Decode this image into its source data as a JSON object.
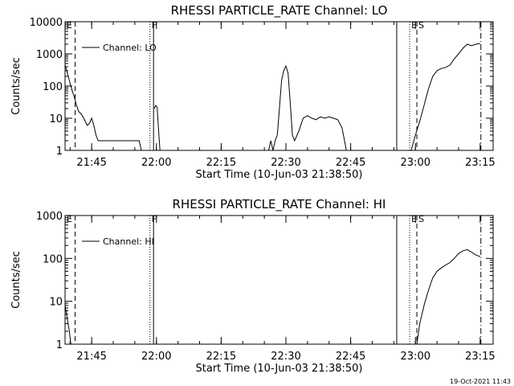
{
  "footer": {
    "timestamp": "19-Oct-2021 11:43"
  },
  "chart_data": [
    {
      "type": "line",
      "title": "RHESSI PARTICLE_RATE Channel: LO",
      "xlabel": "Start Time (10-Jun-03 21:38:50)",
      "ylabel": "Counts/sec",
      "yscale": "log",
      "xlim": [
        "21:38:50",
        "23:18:00"
      ],
      "ylim": [
        1,
        10000
      ],
      "x_ticks": [
        "21:45",
        "22:00",
        "22:15",
        "22:30",
        "22:45",
        "23:00",
        "23:15"
      ],
      "y_ticks": [
        "1",
        "10",
        "100",
        "1000",
        "10000"
      ],
      "legend": {
        "position": "top-left",
        "label": "Channel: LO"
      },
      "markers": [
        {
          "time": "21:38:50",
          "style": "dotted",
          "label": "E"
        },
        {
          "time": "21:41:10",
          "style": "dashed",
          "label": ""
        },
        {
          "time": "21:58:30",
          "style": "dotted",
          "label": "F"
        },
        {
          "time": "21:59:20",
          "style": "solid",
          "label": ""
        },
        {
          "time": "22:55:40",
          "style": "solid",
          "label": ""
        },
        {
          "time": "22:58:40",
          "style": "dotted",
          "label": "E"
        },
        {
          "time": "23:00:20",
          "style": "dashed",
          "label": "S"
        },
        {
          "time": "23:15:10",
          "style": "dashdot",
          "label": ""
        }
      ],
      "series": [
        {
          "segments": [
            [
              [
                "21:38:50",
                450
              ],
              [
                "21:39:30",
                220
              ],
              [
                "21:40:00",
                120
              ],
              [
                "21:40:30",
                70
              ],
              [
                "21:41:00",
                45
              ],
              [
                "21:41:30",
                25
              ],
              [
                "21:42:00",
                16
              ],
              [
                "21:42:30",
                14
              ],
              [
                "21:43:00",
                11
              ],
              [
                "21:43:30",
                8
              ],
              [
                "21:44:00",
                6
              ],
              [
                "21:44:30",
                7
              ],
              [
                "21:45:00",
                10
              ],
              [
                "21:45:30",
                6
              ],
              [
                "21:46:00",
                3
              ],
              [
                "21:46:30",
                2
              ],
              [
                "21:47:00",
                2
              ],
              [
                "21:48:00",
                2
              ],
              [
                "21:49:00",
                2
              ],
              [
                "21:50:00",
                2
              ],
              [
                "21:51:00",
                2
              ],
              [
                "21:52:00",
                2
              ],
              [
                "21:53:00",
                2
              ],
              [
                "21:54:00",
                2
              ],
              [
                "21:55:00",
                2
              ],
              [
                "21:56:00",
                2
              ],
              [
                "21:56:30",
                1
              ]
            ],
            [
              [
                "21:59:30",
                20
              ],
              [
                "21:59:50",
                25
              ],
              [
                "22:00:10",
                22
              ],
              [
                "22:00:30",
                4
              ],
              [
                "22:00:50",
                1
              ]
            ],
            [
              [
                "22:26:00",
                1
              ],
              [
                "22:26:30",
                2
              ],
              [
                "22:27:00",
                1
              ],
              [
                "22:27:30",
                2
              ],
              [
                "22:28:00",
                3
              ],
              [
                "22:28:30",
                20
              ],
              [
                "22:29:00",
                150
              ],
              [
                "22:29:30",
                300
              ],
              [
                "22:30:00",
                420
              ],
              [
                "22:30:30",
                250
              ],
              [
                "22:31:00",
                30
              ],
              [
                "22:31:30",
                3
              ],
              [
                "22:32:00",
                2
              ],
              [
                "22:33:00",
                4
              ],
              [
                "22:34:00",
                10
              ],
              [
                "22:35:00",
                12
              ],
              [
                "22:36:00",
                10
              ],
              [
                "22:37:00",
                9
              ],
              [
                "22:38:00",
                11
              ],
              [
                "22:39:00",
                10
              ],
              [
                "22:40:00",
                11
              ],
              [
                "22:41:00",
                10
              ],
              [
                "22:42:00",
                9
              ],
              [
                "22:43:00",
                5
              ],
              [
                "22:44:00",
                1
              ]
            ],
            [
              [
                "22:59:00",
                1
              ],
              [
                "23:00:00",
                3
              ],
              [
                "23:01:00",
                8
              ],
              [
                "23:02:00",
                25
              ],
              [
                "23:03:00",
                80
              ],
              [
                "23:04:00",
                200
              ],
              [
                "23:05:00",
                300
              ],
              [
                "23:06:00",
                350
              ],
              [
                "23:07:00",
                380
              ],
              [
                "23:08:00",
                450
              ],
              [
                "23:09:00",
                700
              ],
              [
                "23:10:00",
                1000
              ],
              [
                "23:11:00",
                1500
              ],
              [
                "23:12:00",
                2000
              ],
              [
                "23:13:00",
                1800
              ],
              [
                "23:14:00",
                2000
              ],
              [
                "23:15:00",
                2100
              ]
            ]
          ]
        }
      ]
    },
    {
      "type": "line",
      "title": "RHESSI PARTICLE_RATE Channel: HI",
      "xlabel": "Start Time (10-Jun-03 21:38:50)",
      "ylabel": "Counts/sec",
      "yscale": "log",
      "xlim": [
        "21:38:50",
        "23:18:00"
      ],
      "ylim": [
        1,
        1000
      ],
      "x_ticks": [
        "21:45",
        "22:00",
        "22:15",
        "22:30",
        "22:45",
        "23:00",
        "23:15"
      ],
      "y_ticks": [
        "1",
        "10",
        "100",
        "1000"
      ],
      "legend": {
        "position": "top-left",
        "label": "Channel: HI"
      },
      "markers": [
        {
          "time": "21:38:50",
          "style": "dotted",
          "label": "E"
        },
        {
          "time": "21:41:10",
          "style": "dashed",
          "label": ""
        },
        {
          "time": "21:58:30",
          "style": "dotted",
          "label": "F"
        },
        {
          "time": "21:59:20",
          "style": "solid",
          "label": ""
        },
        {
          "time": "22:55:40",
          "style": "solid",
          "label": ""
        },
        {
          "time": "22:58:40",
          "style": "dotted",
          "label": "E"
        },
        {
          "time": "23:00:20",
          "style": "dashed",
          "label": "S"
        },
        {
          "time": "23:15:10",
          "style": "dashdot",
          "label": ""
        }
      ],
      "series": [
        {
          "segments": [
            [
              [
                "21:38:50",
                8
              ],
              [
                "21:39:20",
                4
              ],
              [
                "21:39:50",
                2
              ],
              [
                "21:40:10",
                1
              ]
            ],
            [
              [
                "23:00:20",
                1
              ],
              [
                "23:01:00",
                3
              ],
              [
                "23:02:00",
                8
              ],
              [
                "23:03:00",
                18
              ],
              [
                "23:04:00",
                35
              ],
              [
                "23:05:00",
                50
              ],
              [
                "23:06:00",
                60
              ],
              [
                "23:07:00",
                70
              ],
              [
                "23:08:00",
                80
              ],
              [
                "23:09:00",
                100
              ],
              [
                "23:10:00",
                130
              ],
              [
                "23:11:00",
                150
              ],
              [
                "23:12:00",
                160
              ],
              [
                "23:13:00",
                140
              ],
              [
                "23:14:00",
                120
              ],
              [
                "23:15:00",
                110
              ]
            ]
          ]
        }
      ]
    }
  ]
}
